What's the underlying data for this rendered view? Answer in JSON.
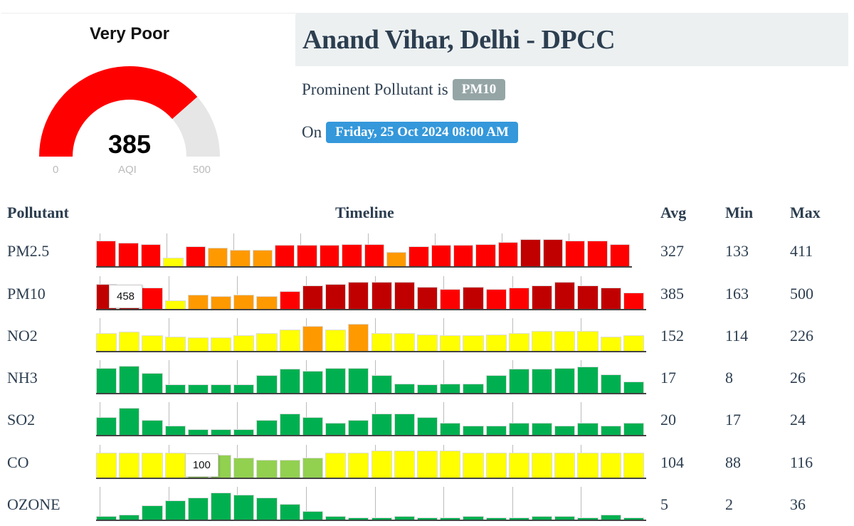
{
  "gauge": {
    "category": "Very Poor",
    "value": 385,
    "min_label": "0",
    "max_label": "500",
    "unit_label": "AQI",
    "min": 0,
    "max": 500,
    "fill_color": "#ff0000",
    "track_color": "#e6e6e6"
  },
  "station": {
    "title": "Anand Vihar, Delhi - DPCC",
    "prominent_prefix": "Prominent Pollutant is",
    "prominent": "PM10",
    "on_prefix": "On",
    "datetime": "Friday, 25 Oct 2024 08:00 AM",
    "prominent_color": "#95a5a6",
    "date_color": "#3498db"
  },
  "table": {
    "headers": {
      "pollutant": "Pollutant",
      "timeline": "Timeline",
      "avg": "Avg",
      "min": "Min",
      "max": "Max"
    },
    "palette": {
      "R": "#ff0000",
      "D": "#c00000",
      "O": "#ff9900",
      "Y": "#ffff00",
      "G": "#00b050",
      "L": "#92d050"
    },
    "rows": [
      {
        "name": "PM2.5",
        "avg": "327",
        "min": "133",
        "max": "411",
        "ymin": 0,
        "values": [
          390,
          355,
          338,
          133,
          303,
          286,
          251,
          251,
          320,
          320,
          320,
          338,
          338,
          216,
          303,
          320,
          320,
          338,
          373,
          411,
          411,
          390,
          390,
          338
        ],
        "colors": "RRRYROOORRRRRORRRRRDDRRR"
      },
      {
        "name": "PM10",
        "avg": "385",
        "min": "163",
        "max": "500",
        "ymin": 0,
        "values": [
          458,
          420,
          391,
          163,
          261,
          239,
          261,
          239,
          326,
          435,
          457,
          500,
          500,
          500,
          413,
          370,
          413,
          370,
          391,
          435,
          500,
          435,
          391,
          304
        ],
        "colors": "DDRYOOOORDDDDDDRDRRDDDDR",
        "tooltip": {
          "index": 0,
          "text": "458"
        }
      },
      {
        "name": "NO2",
        "avg": "152",
        "min": "114",
        "max": "226",
        "ymin": 0,
        "values": [
          148,
          158,
          129,
          119,
          114,
          114,
          129,
          148,
          178,
          206,
          179,
          226,
          148,
          148,
          138,
          129,
          129,
          138,
          148,
          168,
          168,
          168,
          119,
          129
        ],
        "colors": "YYYYYYYYYOYOYYYYYYYYYYYY"
      },
      {
        "name": "NH3",
        "avg": "17",
        "min": "8",
        "max": "26",
        "ymin": 0,
        "values": [
          24,
          26,
          19,
          8,
          8,
          8,
          8,
          17,
          23,
          21,
          24,
          24,
          17,
          9,
          8,
          9,
          9,
          17,
          23,
          23,
          24,
          25,
          18,
          11
        ],
        "colors": "GGGGGGGGGGGGGGGGGGGGGGGG"
      },
      {
        "name": "SO2",
        "avg": "20",
        "min": "17",
        "max": "24",
        "ymin": 15,
        "values": [
          21,
          24,
          20,
          18,
          17,
          17,
          17,
          20,
          22,
          21,
          19,
          20,
          22,
          22,
          21,
          19,
          18,
          18,
          19,
          19,
          18,
          19,
          18,
          19
        ],
        "colors": "GGGGGGGGGGGGGGGGGGGGGGGG"
      },
      {
        "name": "CO",
        "avg": "104",
        "min": "88",
        "max": "116",
        "ymin": 40,
        "values": [
          106,
          106,
          106,
          106,
          100,
          100,
          93,
          88,
          88,
          93,
          106,
          106,
          112,
          112,
          112,
          112,
          106,
          106,
          106,
          106,
          106,
          106,
          106,
          106
        ],
        "colors": "YYYYLLLLLLYYYYYYYYYYYYYY",
        "tooltip": {
          "index": 4,
          "text": "100"
        }
      },
      {
        "name": "OZONE",
        "avg": "5",
        "min": "2",
        "max": "36",
        "ymin": 0,
        "values": [
          5,
          7,
          19,
          26,
          29,
          36,
          33,
          29,
          21,
          11,
          5,
          3,
          3,
          5,
          3,
          2,
          5,
          2,
          3,
          5,
          5,
          3,
          7,
          3
        ],
        "colors": "GGGGGGGGGGGGGGGGGGGGGGGG"
      }
    ]
  }
}
